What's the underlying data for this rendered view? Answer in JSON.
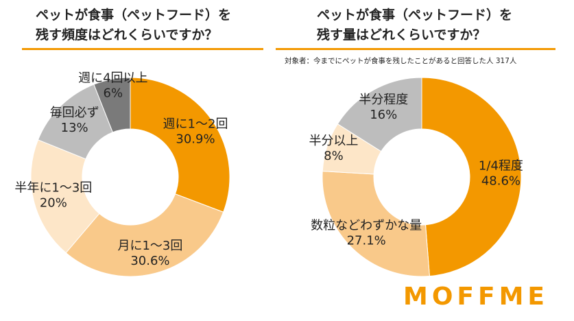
{
  "chart_data": [
    {
      "type": "donut",
      "title": "ペットが食事（ペットフード）を\n残す頻度はどれくらいですか？",
      "categories": [
        "週に1〜2回",
        "月に1〜3回",
        "半年に1〜3回",
        "毎回必ず",
        "週に4回以上"
      ],
      "values": [
        30.9,
        30.6,
        20,
        13,
        6
      ],
      "value_labels": [
        "30.9%",
        "30.6%",
        "20%",
        "13%",
        "6%"
      ],
      "colors": [
        "#f39800",
        "#f9c98a",
        "#fde6c8",
        "#bdbdbd",
        "#7a7a7a"
      ]
    },
    {
      "type": "donut",
      "title": "ペットが食事（ペットフード）を\n残す量はどれくらいですか？",
      "subtitle": "対象者：今までにペットが食事を残したことがあると回答した人 317人",
      "categories": [
        "1/4程度",
        "数粒などわずかな量",
        "半分以上",
        "半分程度"
      ],
      "values": [
        48.6,
        27.1,
        8,
        16
      ],
      "value_labels": [
        "48.6%",
        "27.1%",
        "8%",
        "16%"
      ],
      "colors": [
        "#f39800",
        "#f9c98a",
        "#fde6c8",
        "#bdbdbd"
      ]
    }
  ],
  "brand": "MOFFME"
}
